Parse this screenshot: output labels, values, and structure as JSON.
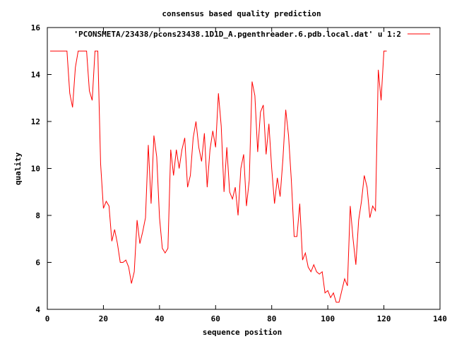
{
  "chart_data": {
    "type": "line",
    "title": "consensus based quality prediction",
    "xlabel": "sequence position",
    "ylabel": "quality",
    "xlim": [
      0,
      140
    ],
    "ylim": [
      4,
      16
    ],
    "xticks": [
      "0",
      "20",
      "40",
      "60",
      "80",
      "100",
      "120",
      "140"
    ],
    "yticks": [
      "4",
      "6",
      "8",
      "10",
      "12",
      "14",
      "16"
    ],
    "grid": false,
    "legend_position": "top-right",
    "series": [
      {
        "name": "'PCONSMETA/23438/pcons23438.1D1D_A.pgenthreader.6.pdb.local.dat' u 1:2",
        "color": "#ff0000",
        "x": [
          1,
          2,
          3,
          4,
          5,
          6,
          7,
          8,
          9,
          10,
          11,
          12,
          13,
          14,
          15,
          16,
          17,
          18,
          19,
          20,
          21,
          22,
          23,
          24,
          25,
          26,
          27,
          28,
          29,
          30,
          31,
          32,
          33,
          34,
          35,
          36,
          37,
          38,
          39,
          40,
          41,
          42,
          43,
          44,
          45,
          46,
          47,
          48,
          49,
          50,
          51,
          52,
          53,
          54,
          55,
          56,
          57,
          58,
          59,
          60,
          61,
          62,
          63,
          64,
          65,
          66,
          67,
          68,
          69,
          70,
          71,
          72,
          73,
          74,
          75,
          76,
          77,
          78,
          79,
          80,
          81,
          82,
          83,
          84,
          85,
          86,
          87,
          88,
          89,
          90,
          91,
          92,
          93,
          94,
          95,
          96,
          97,
          98,
          99,
          100,
          101,
          102,
          103,
          104,
          105,
          106,
          107,
          108,
          109,
          110,
          111,
          112,
          113,
          114,
          115,
          116,
          117,
          118,
          119,
          120,
          121
        ],
        "values": [
          15.0,
          15.0,
          15.0,
          15.0,
          15.0,
          15.0,
          15.0,
          13.2,
          12.6,
          14.3,
          15.0,
          15.0,
          15.0,
          15.0,
          13.3,
          12.9,
          15.0,
          15.0,
          10.2,
          8.3,
          8.6,
          8.4,
          6.9,
          7.4,
          6.8,
          6.0,
          6.0,
          6.1,
          5.8,
          5.1,
          5.6,
          7.8,
          6.8,
          7.3,
          7.9,
          11.0,
          8.5,
          11.4,
          10.5,
          7.9,
          6.6,
          6.4,
          6.6,
          10.8,
          9.7,
          10.8,
          10.0,
          10.8,
          11.3,
          9.2,
          9.7,
          11.3,
          12.0,
          10.9,
          10.3,
          11.5,
          9.2,
          10.8,
          11.6,
          10.9,
          13.2,
          11.8,
          9.0,
          10.9,
          9.0,
          8.7,
          9.2,
          8.0,
          10.0,
          10.6,
          8.4,
          9.5,
          13.7,
          13.1,
          10.7,
          12.4,
          12.7,
          10.6,
          11.9,
          10.0,
          8.5,
          9.6,
          8.8,
          10.4,
          12.5,
          11.4,
          9.5,
          7.1,
          7.1,
          8.5,
          6.1,
          6.4,
          5.8,
          5.6,
          5.9,
          5.6,
          5.5,
          5.6,
          4.7,
          4.8,
          4.5,
          4.7,
          4.3,
          4.3,
          4.8,
          5.3,
          5.0,
          8.4,
          7.0,
          5.9,
          7.8,
          8.6,
          9.7,
          9.2,
          7.9,
          8.4,
          8.2,
          14.2,
          12.9,
          15.0,
          15.0
        ]
      }
    ]
  }
}
